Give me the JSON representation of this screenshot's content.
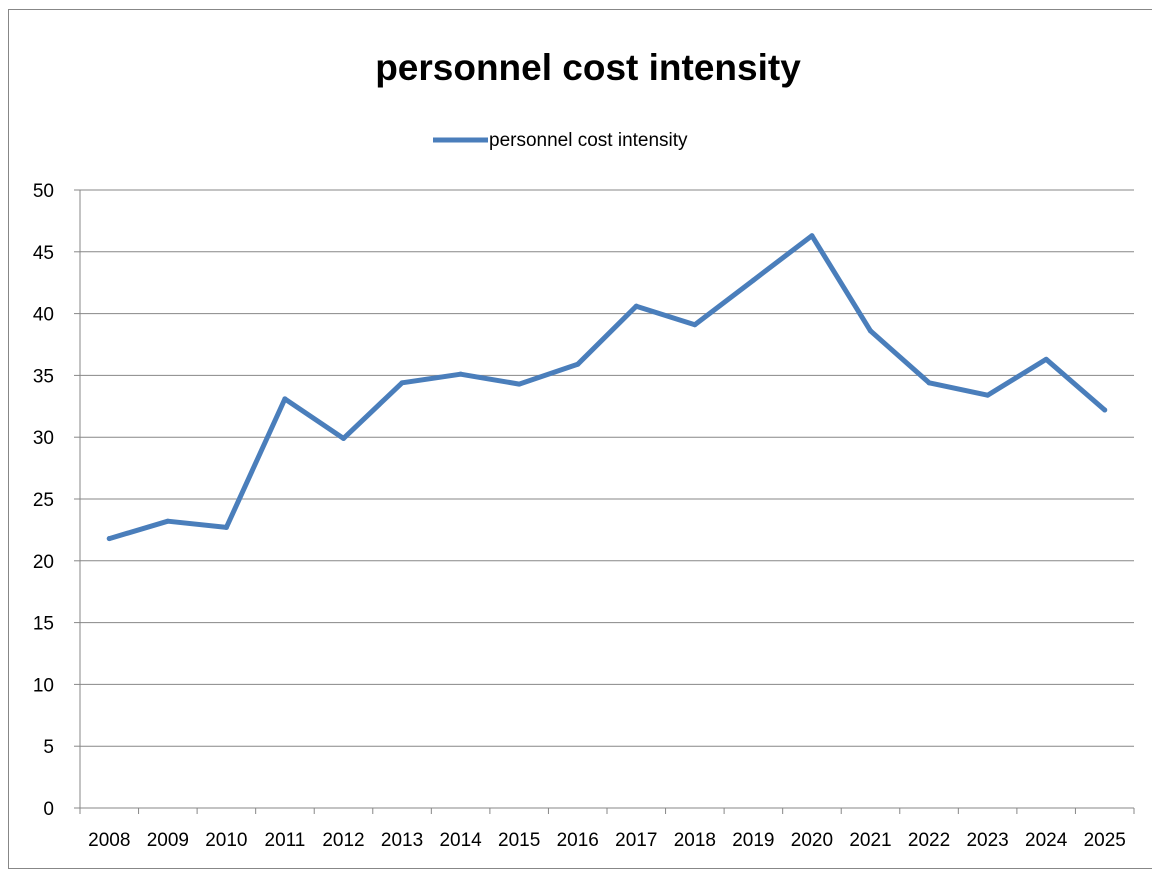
{
  "chart_data": {
    "type": "line",
    "title": "personnel cost intensity",
    "categories": [
      "2008",
      "2009",
      "2010",
      "2011",
      "2012",
      "2013",
      "2014",
      "2015",
      "2016",
      "2017",
      "2018",
      "2019",
      "2020",
      "2021",
      "2022",
      "2023",
      "2024",
      "2025"
    ],
    "series": [
      {
        "name": "personnel cost intensity",
        "color": "#4a7ebb",
        "values": [
          21.8,
          23.2,
          22.7,
          33.1,
          29.9,
          34.4,
          35.1,
          34.3,
          35.9,
          40.6,
          39.1,
          42.7,
          46.3,
          38.6,
          34.4,
          33.4,
          36.3,
          32.2
        ]
      }
    ],
    "ylim": [
      0,
      50
    ],
    "y_ticks": [
      "0",
      "5",
      "10",
      "15",
      "20",
      "25",
      "30",
      "35",
      "40",
      "45",
      "50"
    ],
    "xlabel": "",
    "ylabel": "",
    "grid": true,
    "legend_position": "top"
  }
}
